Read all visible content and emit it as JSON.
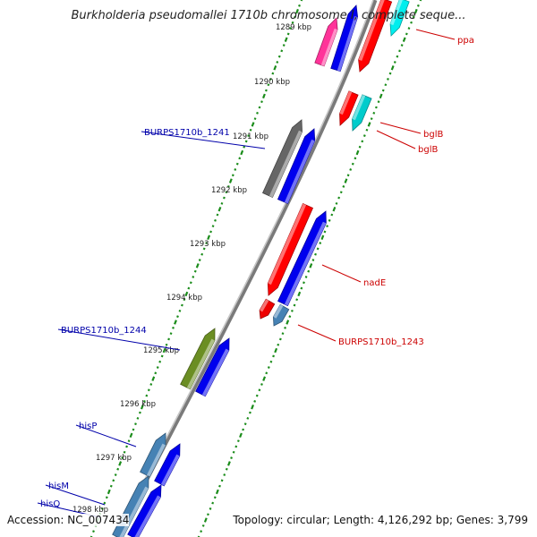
{
  "title": "Burkholderia pseudomallei 1710b chromosome I, complete seque...",
  "accession_label": "Accession: NC_007434",
  "topology_label": "Topology: circular; Length: 4,126,292 bp; Genes: 3,799",
  "ticks": [
    "1289 kbp",
    "1290 kbp",
    "1291 kbp",
    "1292 kbp",
    "1293 kbp",
    "1294 kbp",
    "1295 kbp",
    "1296 kbp",
    "1297 kbp",
    "1298 kbp"
  ],
  "genes": [
    {
      "label": "ppa",
      "strand": "reverse",
      "color": "#ff0000"
    },
    {
      "label": "bglB",
      "strand": "reverse",
      "color": "#00cccc"
    },
    {
      "label": "bglB",
      "strand": "reverse",
      "color": "#ff0000"
    },
    {
      "label": "BURPS1710b_1241",
      "strand": "forward",
      "color": "#666666"
    },
    {
      "label": "nadE",
      "strand": "reverse",
      "color": "#ff0000"
    },
    {
      "label": "BURPS1710b_1243",
      "strand": "reverse",
      "color": "#4682b4"
    },
    {
      "label": "BURPS1710b_1244",
      "strand": "forward",
      "color": "#6b8e23"
    },
    {
      "label": "hisP",
      "strand": "forward",
      "color": "#4682b4"
    },
    {
      "label": "hisM",
      "strand": "forward",
      "color": "#4682b4"
    },
    {
      "label": "hisQ",
      "strand": "forward",
      "color": "#4682b4"
    }
  ],
  "colors": {
    "backbone": "#888888",
    "forward_cds": "#0000ee",
    "reverse_cds": "#ee0000",
    "gc_marks": "#1a8c1a",
    "forward_label": "#0000aa",
    "reverse_label": "#cc0000",
    "extra_feature": "#ff3399"
  }
}
